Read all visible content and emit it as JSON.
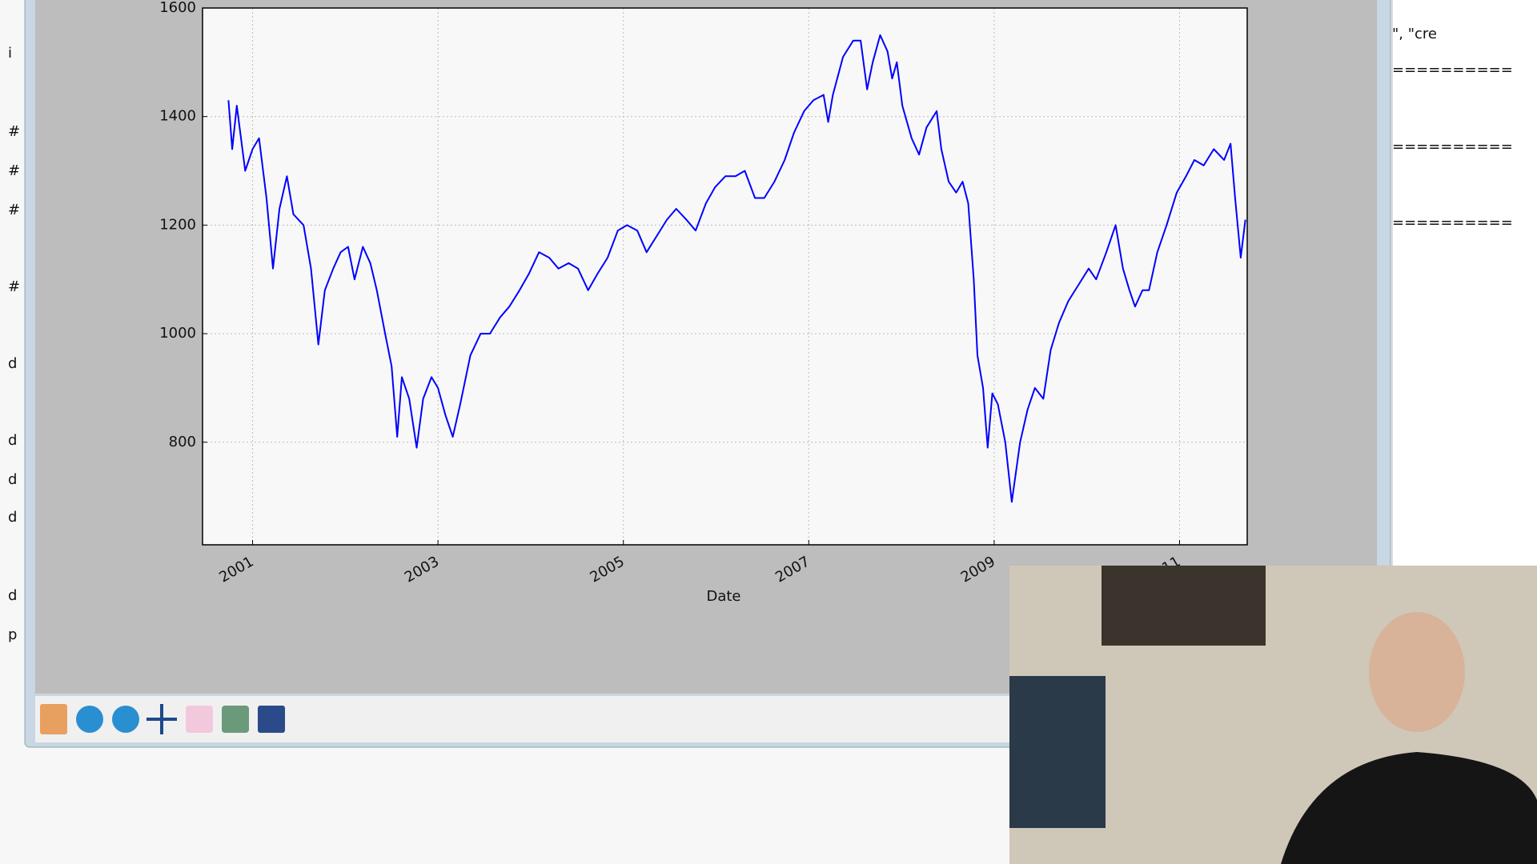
{
  "editor": {
    "left_lines": [
      "i",
      "#",
      "#",
      "#",
      "#",
      "d",
      "d",
      "d",
      "d",
      "d",
      "p"
    ],
    "right_lines": [
      "\", \"cre",
      "==========",
      "==========",
      "=========="
    ]
  },
  "chart_data": {
    "type": "line",
    "xlabel": "Date",
    "color": "#0000ff",
    "grid": true,
    "xlim": [
      2000.46,
      2011.73
    ],
    "xticks": [
      2001,
      2003,
      2005,
      2007,
      2009,
      2011
    ],
    "ylim": [
      611,
      1600
    ],
    "yticks": [
      800,
      1000,
      1200,
      1400,
      1600
    ],
    "x": [
      2000.74,
      2000.78,
      2000.83,
      2000.92,
      2001.0,
      2001.07,
      2001.15,
      2001.22,
      2001.29,
      2001.37,
      2001.44,
      2001.55,
      2001.63,
      2001.71,
      2001.78,
      2001.87,
      2001.95,
      2002.03,
      2002.1,
      2002.19,
      2002.27,
      2002.34,
      2002.43,
      2002.5,
      2002.56,
      2002.61,
      2002.69,
      2002.77,
      2002.84,
      2002.93,
      2003.0,
      2003.08,
      2003.16,
      2003.24,
      2003.35,
      2003.46,
      2003.56,
      2003.67,
      2003.77,
      2003.88,
      2003.98,
      2004.09,
      2004.2,
      2004.3,
      2004.41,
      2004.51,
      2004.62,
      2004.72,
      2004.83,
      2004.94,
      2005.04,
      2005.15,
      2005.25,
      2005.36,
      2005.47,
      2005.57,
      2005.68,
      2005.78,
      2005.89,
      2005.99,
      2006.1,
      2006.21,
      2006.31,
      2006.42,
      2006.52,
      2006.63,
      2006.74,
      2006.84,
      2006.95,
      2007.05,
      2007.16,
      2007.21,
      2007.26,
      2007.37,
      2007.48,
      2007.56,
      2007.63,
      2007.69,
      2007.77,
      2007.85,
      2007.9,
      2007.95,
      2008.01,
      2008.11,
      2008.19,
      2008.27,
      2008.38,
      2008.43,
      2008.51,
      2008.59,
      2008.66,
      2008.72,
      2008.78,
      2008.82,
      2008.88,
      2008.93,
      2008.98,
      2009.04,
      2009.12,
      2009.19,
      2009.28,
      2009.36,
      2009.44,
      2009.53,
      2009.61,
      2009.7,
      2009.8,
      2009.91,
      2010.02,
      2010.1,
      2010.21,
      2010.31,
      2010.39,
      2010.46,
      2010.52,
      2010.6,
      2010.67,
      2010.76,
      2010.86,
      2010.97,
      2011.07,
      2011.16,
      2011.26,
      2011.37,
      2011.48,
      2011.55,
      2011.6,
      2011.66,
      2011.71
    ],
    "values": [
      1430,
      1340,
      1420,
      1300,
      1340,
      1360,
      1250,
      1120,
      1230,
      1290,
      1220,
      1200,
      1120,
      980,
      1080,
      1120,
      1150,
      1160,
      1100,
      1160,
      1130,
      1080,
      1000,
      940,
      810,
      920,
      880,
      790,
      880,
      920,
      900,
      850,
      810,
      870,
      960,
      1000,
      1000,
      1030,
      1050,
      1080,
      1110,
      1150,
      1140,
      1120,
      1130,
      1120,
      1080,
      1110,
      1140,
      1190,
      1200,
      1190,
      1150,
      1180,
      1210,
      1230,
      1210,
      1190,
      1240,
      1270,
      1290,
      1290,
      1300,
      1250,
      1250,
      1280,
      1320,
      1370,
      1410,
      1430,
      1440,
      1390,
      1440,
      1510,
      1540,
      1540,
      1450,
      1500,
      1550,
      1520,
      1470,
      1500,
      1420,
      1360,
      1330,
      1380,
      1410,
      1340,
      1280,
      1260,
      1280,
      1240,
      1100,
      960,
      900,
      790,
      890,
      870,
      800,
      690,
      800,
      860,
      900,
      880,
      970,
      1020,
      1060,
      1090,
      1120,
      1100,
      1150,
      1200,
      1120,
      1080,
      1050,
      1080,
      1080,
      1150,
      1200,
      1260,
      1290,
      1320,
      1310,
      1340,
      1320,
      1350,
      1250,
      1140,
      1210
    ]
  }
}
